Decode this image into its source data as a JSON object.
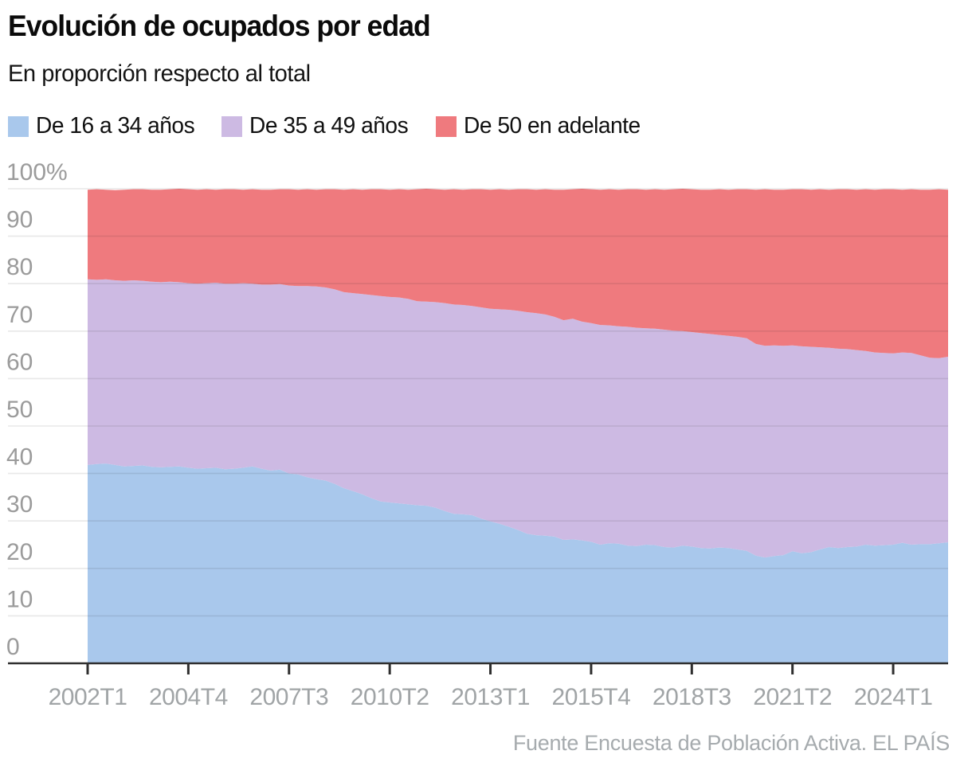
{
  "header": {
    "title": "Evolución de ocupados por edad",
    "subtitle": "En proporción respecto al total"
  },
  "legend": [
    {
      "label": "De 16 a 34 años",
      "color": "#a9c8ec"
    },
    {
      "label": "De 35 a 49 años",
      "color": "#cdbae3"
    },
    {
      "label": "De 50 en adelante",
      "color": "#ef7a7e"
    }
  ],
  "source": "Fuente Encuesta de Población Activa. EL PAÍS",
  "colors": {
    "grid": "rgba(30,30,30,0.10)",
    "axis": "#2f2f2f",
    "y_tick_text": "#9b9b9b",
    "x_tick_text": "#a0a4a6"
  },
  "chart_data": {
    "type": "area",
    "stacked": true,
    "unit": "percent",
    "frequency": "quarterly",
    "x_start": "2002T1",
    "x_end": "2025T3",
    "ylim": [
      0,
      100
    ],
    "grid": true,
    "legend_position": "top",
    "y_tick_labels": [
      "100%",
      "90",
      "80",
      "70",
      "60",
      "50",
      "40",
      "30",
      "20",
      "10",
      "0"
    ],
    "y_tick_values": [
      100,
      90,
      80,
      70,
      60,
      50,
      40,
      30,
      20,
      10,
      0
    ],
    "x_tick_labels": [
      "2002T1",
      "2004T4",
      "2007T3",
      "2010T2",
      "2013T1",
      "2015T4",
      "2018T3",
      "2021T2",
      "2024T1"
    ],
    "x_tick_indices": [
      0,
      11,
      22,
      33,
      44,
      55,
      66,
      77,
      88
    ],
    "series": [
      {
        "name": "De 16 a 34 años",
        "color": "#a9c8ec",
        "values": [
          41.8,
          42.0,
          42.1,
          41.8,
          41.5,
          41.6,
          41.7,
          41.4,
          41.3,
          41.4,
          41.5,
          41.2,
          41.0,
          41.1,
          41.2,
          40.9,
          41.0,
          41.2,
          41.5,
          41.0,
          40.6,
          40.8,
          40.0,
          39.8,
          39.2,
          38.8,
          38.5,
          37.8,
          36.9,
          36.3,
          35.6,
          34.8,
          34.1,
          33.9,
          33.7,
          33.5,
          33.3,
          33.2,
          32.8,
          32.1,
          31.5,
          31.4,
          31.2,
          30.5,
          29.9,
          29.4,
          28.8,
          28.1,
          27.3,
          27.0,
          26.9,
          26.7,
          26.0,
          26.1,
          25.9,
          25.6,
          25.0,
          25.3,
          25.2,
          24.8,
          24.7,
          25.0,
          24.9,
          24.5,
          24.4,
          24.8,
          24.6,
          24.3,
          24.2,
          24.4,
          24.3,
          24.0,
          23.7,
          22.7,
          22.3,
          22.6,
          22.8,
          23.6,
          23.2,
          23.4,
          24.0,
          24.5,
          24.3,
          24.5,
          24.6,
          25.0,
          24.8,
          24.9,
          25.0,
          25.4,
          25.0,
          25.1,
          25.1,
          25.3,
          25.5
        ]
      },
      {
        "name": "De 35 a 49 años",
        "color": "#cdbae3",
        "values": [
          39.1,
          38.8,
          38.8,
          38.9,
          39.1,
          39.1,
          38.9,
          39.0,
          39.0,
          39.0,
          38.8,
          38.9,
          39.0,
          39.0,
          39.0,
          39.1,
          39.0,
          38.9,
          38.5,
          38.8,
          39.2,
          39.1,
          39.6,
          39.7,
          40.3,
          40.6,
          40.7,
          41.0,
          41.3,
          41.7,
          42.2,
          42.8,
          43.3,
          43.3,
          43.4,
          43.3,
          43.0,
          43.0,
          43.3,
          43.8,
          44.1,
          44.1,
          44.1,
          44.5,
          44.8,
          45.2,
          45.7,
          46.2,
          46.7,
          46.8,
          46.6,
          46.3,
          46.3,
          46.5,
          46.1,
          46.1,
          46.3,
          45.9,
          45.8,
          46.1,
          46.0,
          45.6,
          45.6,
          45.8,
          45.7,
          45.2,
          45.2,
          45.3,
          45.2,
          44.8,
          44.7,
          44.8,
          44.8,
          44.6,
          44.6,
          44.4,
          44.1,
          43.4,
          43.6,
          43.3,
          42.6,
          42.0,
          42.0,
          41.7,
          41.4,
          40.8,
          40.7,
          40.5,
          40.3,
          40.1,
          40.4,
          39.8,
          39.3,
          39.0,
          39.1
        ]
      },
      {
        "name": "De 50 en adelante",
        "color": "#ef7a7e",
        "values": [
          18.9,
          19.1,
          18.9,
          19.0,
          19.2,
          19.2,
          19.3,
          19.4,
          19.5,
          19.5,
          19.7,
          19.8,
          19.8,
          19.8,
          19.6,
          19.9,
          19.9,
          19.7,
          19.9,
          20.0,
          20.0,
          20.0,
          20.3,
          20.3,
          20.4,
          20.4,
          20.7,
          21.1,
          21.6,
          21.9,
          22.0,
          22.3,
          22.5,
          22.6,
          22.8,
          23.0,
          23.6,
          23.8,
          23.8,
          23.9,
          24.3,
          24.3,
          24.6,
          24.9,
          25.1,
          25.3,
          25.3,
          25.6,
          25.9,
          26.0,
          26.4,
          26.8,
          27.5,
          27.3,
          28.0,
          28.2,
          28.5,
          28.7,
          28.8,
          29.0,
          29.2,
          29.2,
          29.4,
          29.5,
          29.8,
          30.0,
          30.1,
          30.2,
          30.4,
          30.7,
          30.8,
          31.1,
          31.4,
          32.5,
          33.0,
          32.8,
          32.9,
          32.9,
          33.1,
          33.1,
          33.3,
          33.3,
          33.6,
          33.7,
          33.8,
          34.1,
          34.3,
          34.5,
          34.6,
          34.3,
          34.5,
          34.9,
          35.4,
          35.6,
          35.2
        ]
      }
    ]
  }
}
